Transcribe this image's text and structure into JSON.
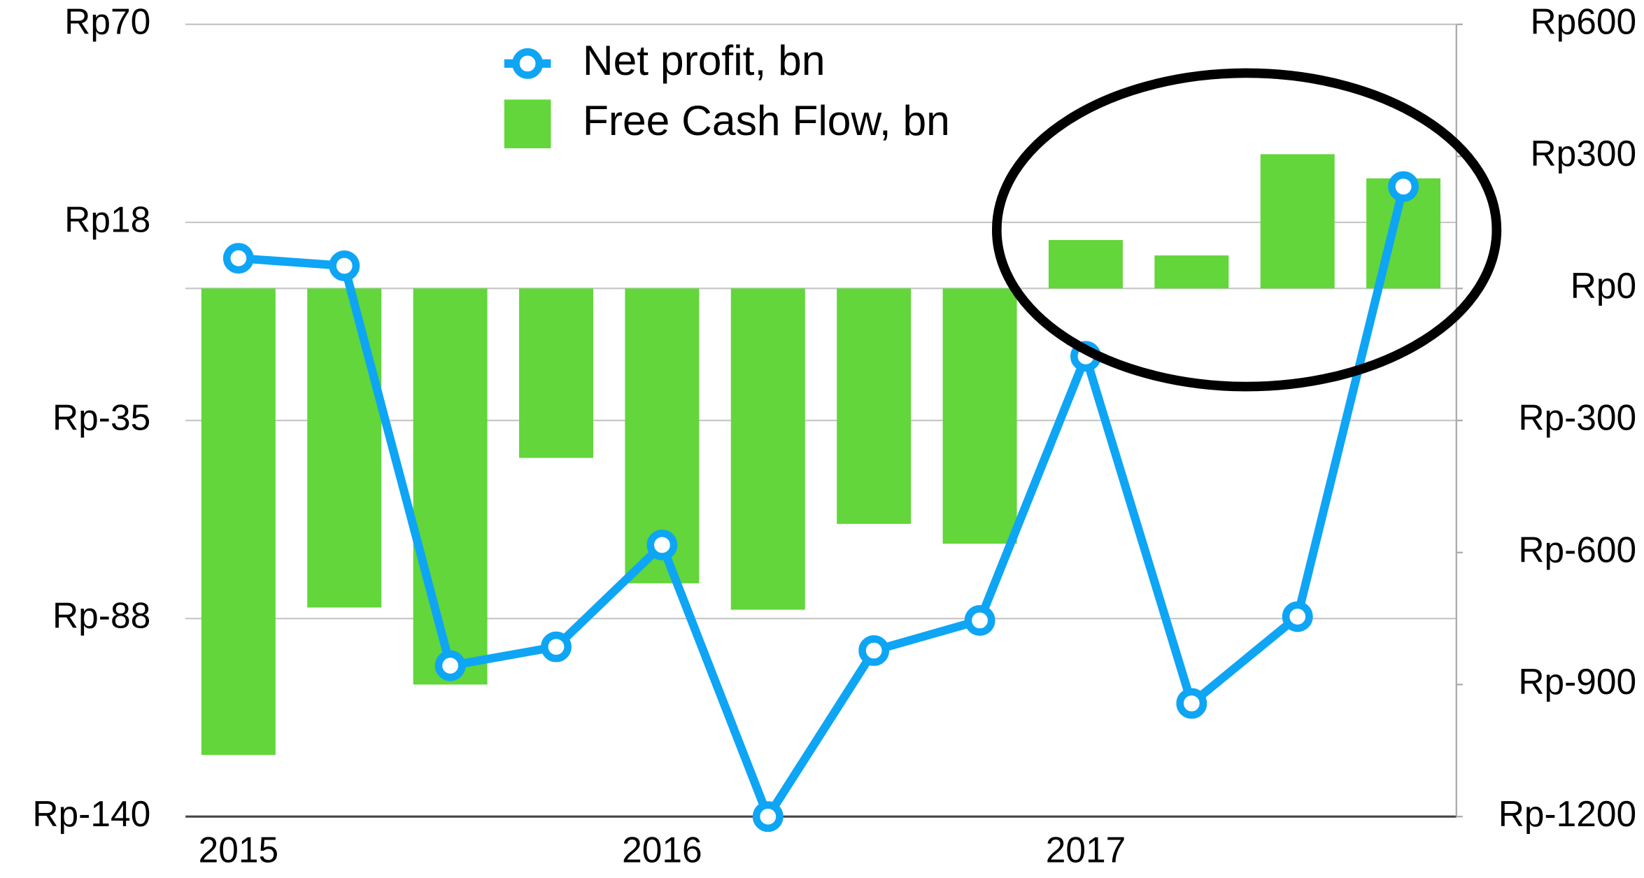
{
  "chart_data": {
    "type": "bar_line",
    "categories": [
      "2015",
      null,
      null,
      null,
      "2016",
      null,
      null,
      null,
      "2017",
      null,
      null,
      null
    ],
    "series": [
      {
        "name": "Net profit, bn",
        "type": "line",
        "axis": "y",
        "color": "#0ea5f5",
        "values": [
          8,
          6,
          -100,
          -95,
          -68,
          -140,
          -96,
          -88,
          -18,
          -110,
          -87,
          27
        ]
      },
      {
        "name": "Free Cash Flow, bn",
        "type": "bar",
        "axis": "y2",
        "color": "#62d63a",
        "values": [
          -1060,
          -725,
          -900,
          -385,
          -670,
          -730,
          -535,
          -580,
          110,
          75,
          305,
          250
        ]
      }
    ],
    "ylim": [
      -140,
      70
    ],
    "yticks": [
      {
        "value": 70,
        "label": "Rp70"
      },
      {
        "value": 17.5,
        "label": "Rp18"
      },
      {
        "value": -35,
        "label": "Rp-35"
      },
      {
        "value": -87.5,
        "label": "Rp-88"
      },
      {
        "value": -140,
        "label": "Rp-140"
      }
    ],
    "y2lim": [
      -1200,
      600
    ],
    "y2ticks": [
      {
        "value": 600,
        "label": "Rp600"
      },
      {
        "value": 300,
        "label": "Rp300"
      },
      {
        "value": 0,
        "label": "Rp0"
      },
      {
        "value": -300,
        "label": "Rp-300"
      },
      {
        "value": -600,
        "label": "Rp-600"
      },
      {
        "value": -900,
        "label": "Rp-900"
      },
      {
        "value": -1200,
        "label": "Rp-1200"
      }
    ],
    "grid": true,
    "legend": "top"
  }
}
